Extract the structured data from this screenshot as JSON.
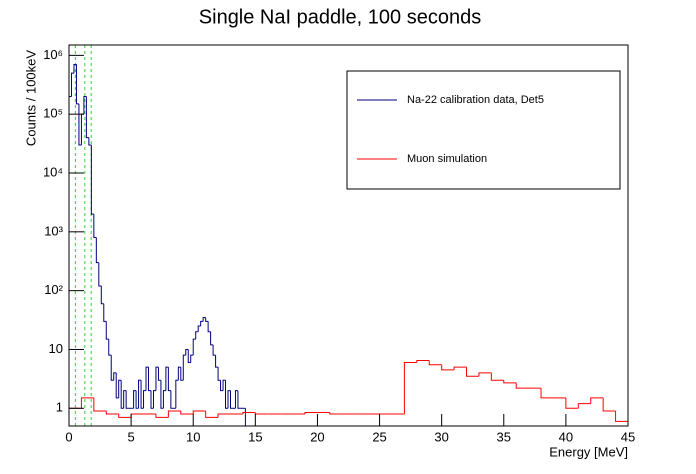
{
  "chart_data": {
    "type": "histogram",
    "title": "Single NaI paddle, 100 seconds",
    "x_label": "Energy [MeV]",
    "y_label": "Counts / 100keV",
    "log_y": true,
    "xlim": [
      0,
      45
    ],
    "ylim": [
      0.5,
      1500000
    ],
    "xticks": [
      0,
      5,
      10,
      15,
      20,
      25,
      30,
      35,
      40,
      45
    ],
    "yticks": [
      1,
      10,
      {
        "value": 100,
        "label": "10²"
      },
      {
        "value": 1000,
        "label": "10³"
      },
      {
        "value": 10000,
        "label": "10⁴"
      },
      {
        "value": 100000,
        "label": "10⁵"
      },
      {
        "value": 1000000,
        "label": "10⁶"
      }
    ],
    "legend": "top-right",
    "vlines": [
      0.511,
      1.275,
      1.786
    ],
    "vline_color": "#33cc33",
    "series": [
      {
        "name": "Na-22 calibration data, Det5",
        "color": "#000080",
        "bins": [
          0,
          0.2,
          0.4,
          0.6,
          0.8,
          1.0,
          1.2,
          1.4,
          1.6,
          1.8,
          2.0,
          2.2,
          2.4,
          2.6,
          2.8,
          3.0,
          3.2,
          3.4,
          3.6,
          3.8,
          4.0,
          4.2,
          4.4,
          4.6,
          4.8,
          5.0,
          5.2,
          5.4,
          5.6,
          5.8,
          6.0,
          6.2,
          6.4,
          6.6,
          6.8,
          7.0,
          7.2,
          7.4,
          7.6,
          7.8,
          8.0,
          8.2,
          8.4,
          8.6,
          8.8,
          9.0,
          9.2,
          9.4,
          9.6,
          9.8,
          10.0,
          10.2,
          10.4,
          10.6,
          10.8,
          11.0,
          11.2,
          11.4,
          11.6,
          11.8,
          12.0,
          12.2,
          12.4,
          12.6,
          12.8,
          13.0,
          13.2,
          13.4,
          13.6,
          13.8,
          14.0,
          14.2,
          14.4
        ],
        "values": [
          200000,
          500000,
          700000,
          150000,
          30000,
          100000,
          200000,
          40000,
          30000,
          2000,
          800,
          300,
          120,
          60,
          30,
          15,
          8,
          3,
          4,
          1.5,
          3,
          1,
          2,
          1,
          1,
          1,
          2,
          1,
          3,
          1,
          2,
          5,
          2,
          1,
          2,
          5,
          3,
          1,
          2,
          5,
          2,
          1,
          1,
          3,
          5,
          3,
          8,
          10,
          6,
          8,
          15,
          20,
          25,
          30,
          35,
          30,
          20,
          12,
          8,
          5,
          3,
          2,
          3,
          1,
          2,
          1,
          1,
          2,
          1,
          1,
          1,
          null
        ]
      },
      {
        "name": "Muon simulation",
        "color": "#ff0000",
        "bins": [
          0,
          1,
          2,
          3,
          4,
          5,
          6,
          7,
          8,
          9,
          10,
          11,
          12,
          13,
          14,
          15,
          16,
          17,
          18,
          19,
          20,
          21,
          22,
          23,
          24,
          25,
          26,
          27,
          28,
          29,
          30,
          31,
          32,
          33,
          34,
          35,
          36,
          37,
          38,
          39,
          40,
          41,
          42,
          43,
          44,
          45
        ],
        "values": [
          1.0,
          1.5,
          0.9,
          0.8,
          0.7,
          0.8,
          0.8,
          0.7,
          0.9,
          0.8,
          0.9,
          0.7,
          0.8,
          0.8,
          0.85,
          0.8,
          0.8,
          0.8,
          0.8,
          0.85,
          0.85,
          0.8,
          0.8,
          0.8,
          0.8,
          0.8,
          0.8,
          6,
          6.5,
          5.5,
          4.5,
          5,
          3.5,
          4,
          3,
          2.7,
          2.2,
          2.2,
          1.5,
          1.5,
          1.0,
          1.2,
          1.5,
          0.9,
          0.6
        ]
      }
    ]
  }
}
